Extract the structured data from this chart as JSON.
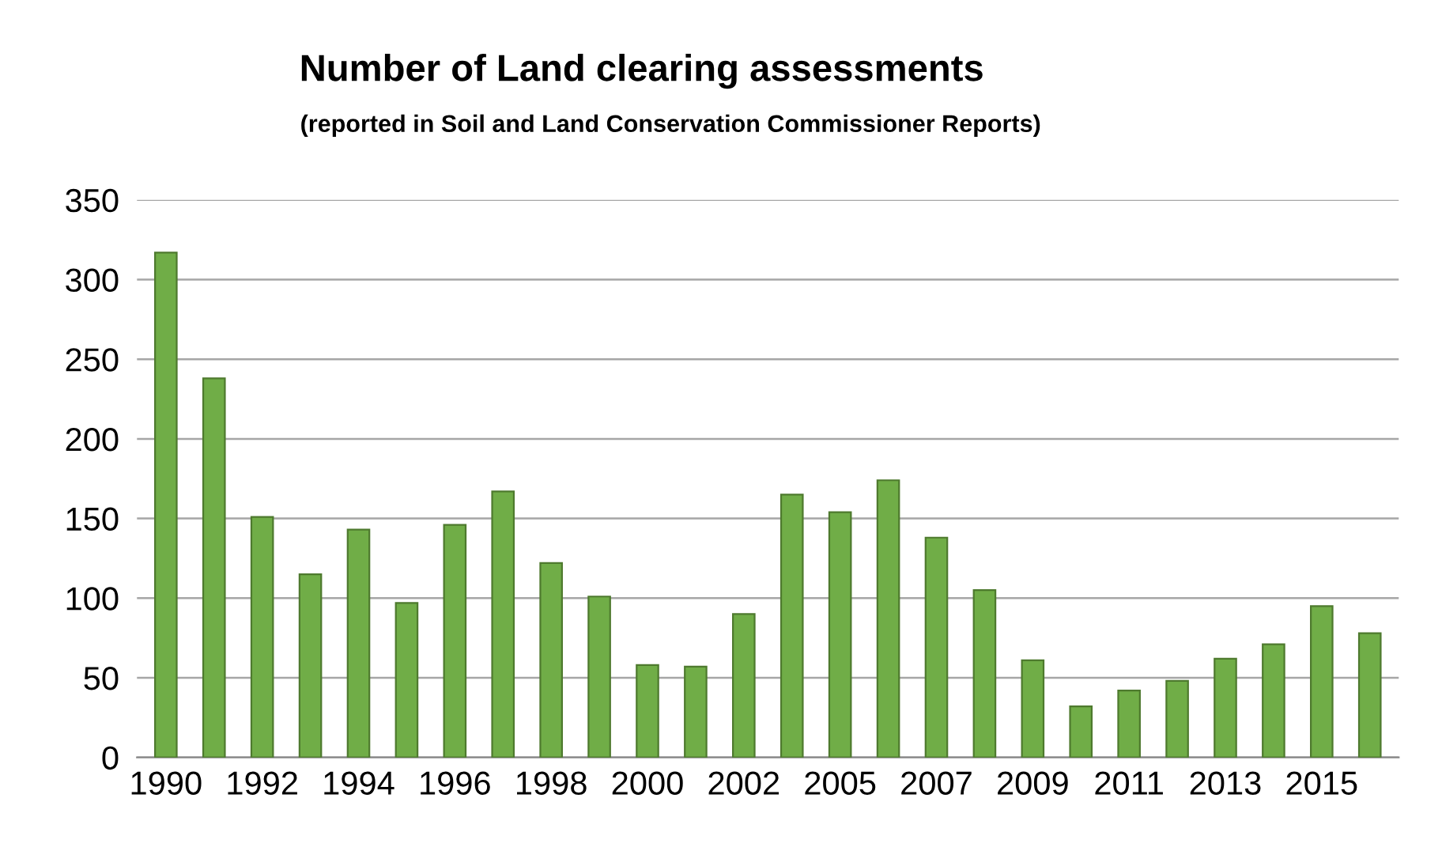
{
  "chart_data": {
    "type": "bar",
    "title": "Number of Land clearing assessments",
    "subtitle": "(reported in Soil and Land Conservation Commissioner Reports)",
    "categories": [
      "1990",
      null,
      "1992",
      null,
      "1994",
      null,
      "1996",
      null,
      "1998",
      null,
      "2000",
      null,
      "2002",
      null,
      "2005",
      null,
      "2007",
      null,
      "2009",
      null,
      "2011",
      null,
      "2013",
      null,
      "2015",
      null
    ],
    "values": [
      317,
      238,
      151,
      115,
      143,
      97,
      146,
      167,
      122,
      101,
      58,
      57,
      90,
      165,
      154,
      174,
      138,
      105,
      61,
      32,
      42,
      48,
      62,
      71,
      95,
      78
    ],
    "color": "#70ad47",
    "ylim": [
      0,
      350
    ],
    "yticks": [
      0,
      50,
      100,
      150,
      200,
      250,
      300,
      350
    ],
    "grid": "y",
    "legend": false
  }
}
